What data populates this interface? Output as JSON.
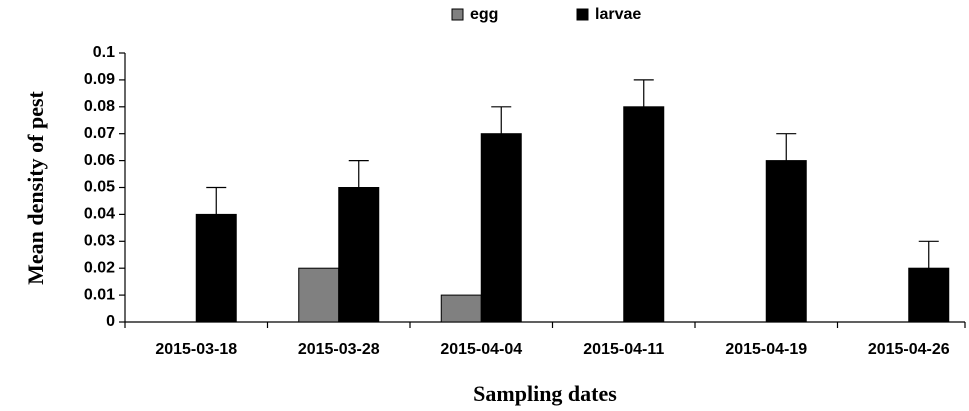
{
  "chart_data": {
    "type": "bar",
    "x_label": "Sampling dates",
    "y_label": "Mean density of  pest",
    "categories": [
      "2015-03-18",
      "2015-03-28",
      "2015-04-04",
      "2015-04-11",
      "2015-04-19",
      "2015-04-26"
    ],
    "series": [
      {
        "name": "egg",
        "color": "#808080",
        "values": [
          0,
          0.02,
          0.01,
          0,
          0,
          0
        ]
      },
      {
        "name": "larvae",
        "color": "#000000",
        "values": [
          0.04,
          0.05,
          0.07,
          0.08,
          0.06,
          0.02
        ],
        "errors": [
          0.01,
          0.01,
          0.01,
          0.01,
          0.01,
          0.01
        ]
      }
    ],
    "ylim": [
      0,
      0.1
    ],
    "yticks": [
      0,
      0.01,
      0.02,
      0.03,
      0.04,
      0.05,
      0.06,
      0.07,
      0.08,
      0.09,
      0.1
    ],
    "legend": "top"
  }
}
